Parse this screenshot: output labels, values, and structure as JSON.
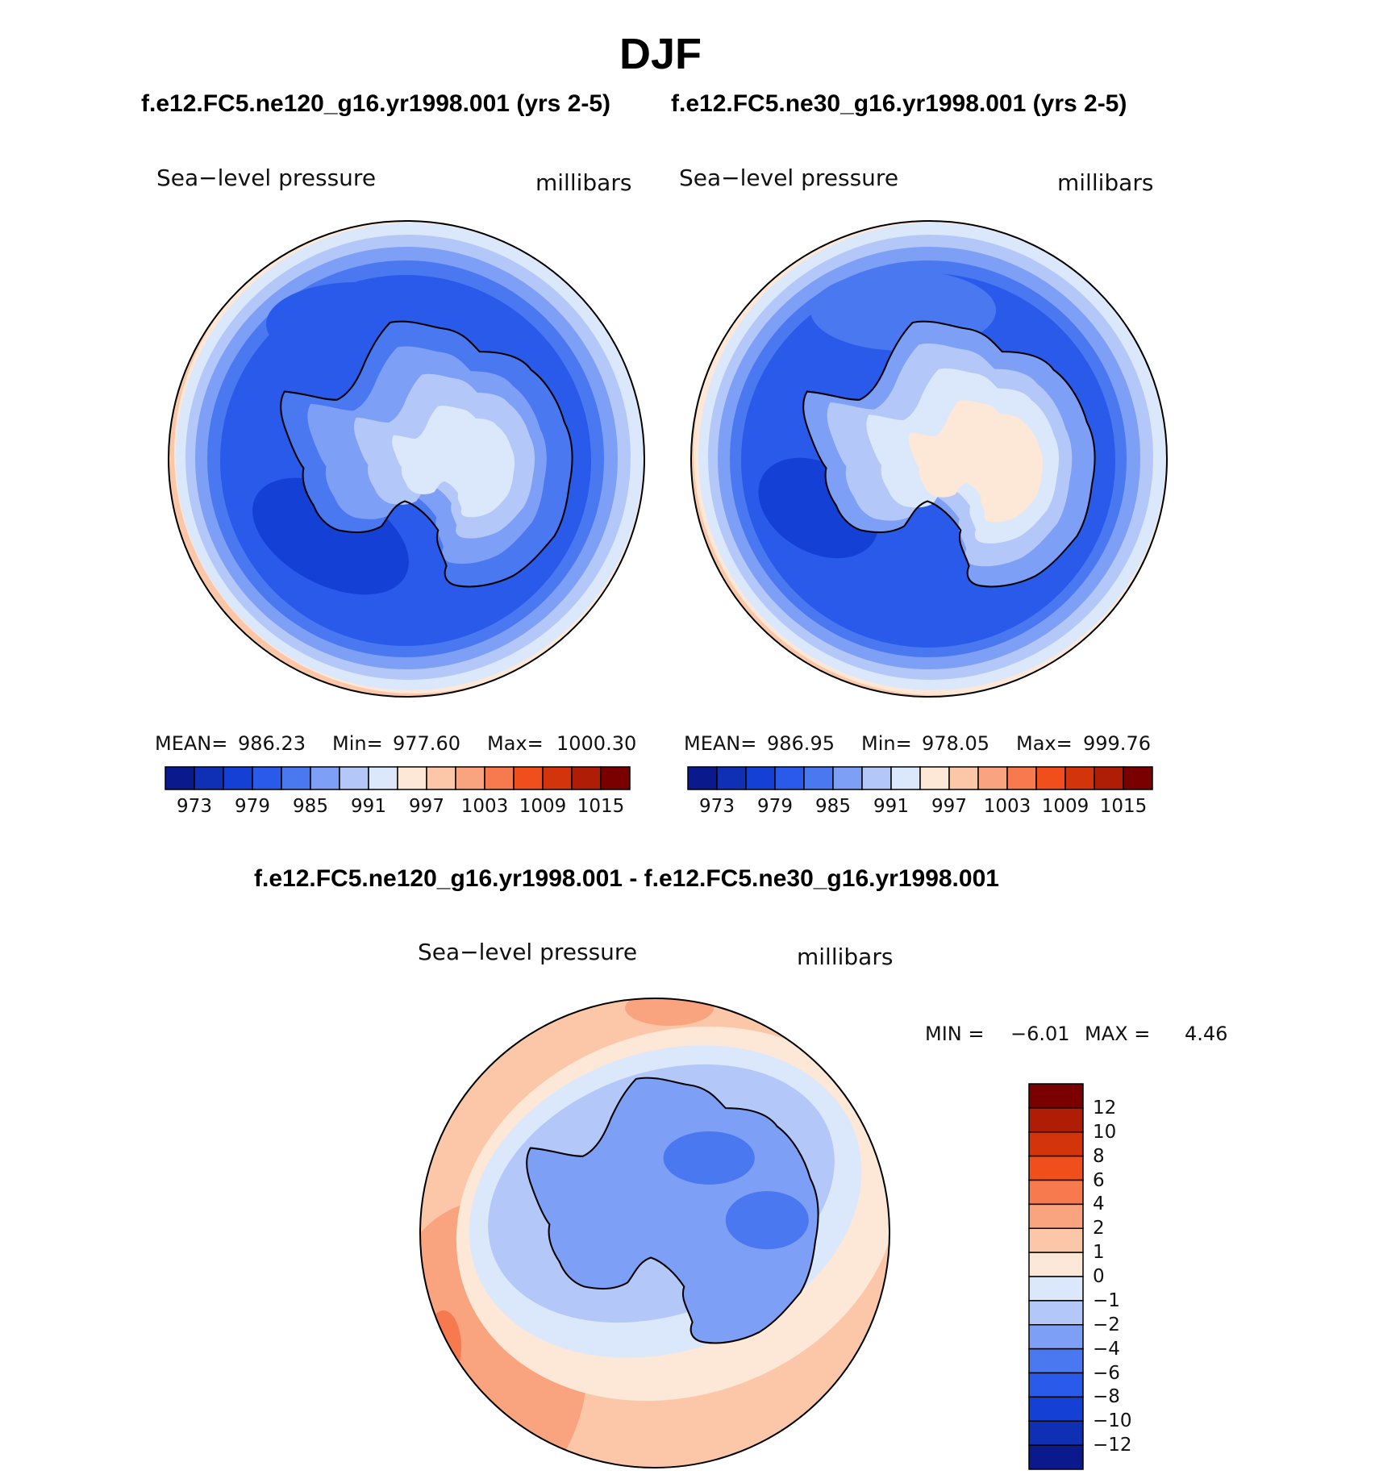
{
  "title": "DJF",
  "chart_data": [
    {
      "type": "heatmap",
      "title": "f.e12.FC5.ne120_g16.yr1998.001 (yrs 2-5)",
      "variable": "Sea−level pressure",
      "units": "millibars",
      "projection": "south polar stereographic",
      "stats": {
        "mean_label": "MEAN=",
        "mean": "986.23",
        "min_label": "Min=",
        "min": "977.60",
        "max_label": "Max=",
        "max": "1000.30"
      },
      "colorbar": {
        "orientation": "horizontal",
        "ticks": [
          "973",
          "979",
          "985",
          "991",
          "997",
          "1003",
          "1009",
          "1015"
        ],
        "colors": [
          "#0a1a8c",
          "#0f2fb4",
          "#1440d6",
          "#2a5ae9",
          "#4a78f0",
          "#7d9ff5",
          "#b3c8f8",
          "#dbe8fb",
          "#fde7d6",
          "#fcc7a8",
          "#f9a47e",
          "#f77a4f",
          "#f04f1c",
          "#d4340c",
          "#b01d06",
          "#7a0000"
        ]
      }
    },
    {
      "type": "heatmap",
      "title": "f.e12.FC5.ne30_g16.yr1998.001 (yrs 2-5)",
      "variable": "Sea−level pressure",
      "units": "millibars",
      "projection": "south polar stereographic",
      "stats": {
        "mean_label": "MEAN=",
        "mean": "986.95",
        "min_label": "Min=",
        "min": "978.05",
        "max_label": "Max=",
        "max": "999.76"
      },
      "colorbar": {
        "orientation": "horizontal",
        "ticks": [
          "973",
          "979",
          "985",
          "991",
          "997",
          "1003",
          "1009",
          "1015"
        ],
        "colors": [
          "#0a1a8c",
          "#0f2fb4",
          "#1440d6",
          "#2a5ae9",
          "#4a78f0",
          "#7d9ff5",
          "#b3c8f8",
          "#dbe8fb",
          "#fde7d6",
          "#fcc7a8",
          "#f9a47e",
          "#f77a4f",
          "#f04f1c",
          "#d4340c",
          "#b01d06",
          "#7a0000"
        ]
      }
    },
    {
      "type": "heatmap",
      "title": "f.e12.FC5.ne120_g16.yr1998.001 - f.e12.FC5.ne30_g16.yr1998.001",
      "variable": "Sea−level pressure",
      "units": "millibars",
      "projection": "south polar stereographic",
      "stats": {
        "min_label": "MIN =",
        "min": "−6.01",
        "max_label": "MAX =",
        "max": "4.46"
      },
      "colorbar": {
        "orientation": "vertical",
        "ticks": [
          "12",
          "10",
          "8",
          "6",
          "4",
          "2",
          "1",
          "0",
          "−1",
          "−2",
          "−4",
          "−6",
          "−8",
          "−10",
          "−12"
        ],
        "colors": [
          "#7a0000",
          "#b01d06",
          "#d4340c",
          "#f04f1c",
          "#f77a4f",
          "#f9a47e",
          "#fcc7a8",
          "#fde7d6",
          "#dbe8fb",
          "#b3c8f8",
          "#7d9ff5",
          "#4a78f0",
          "#2a5ae9",
          "#1440d6",
          "#0f2fb4",
          "#0a1a8c"
        ]
      }
    }
  ]
}
